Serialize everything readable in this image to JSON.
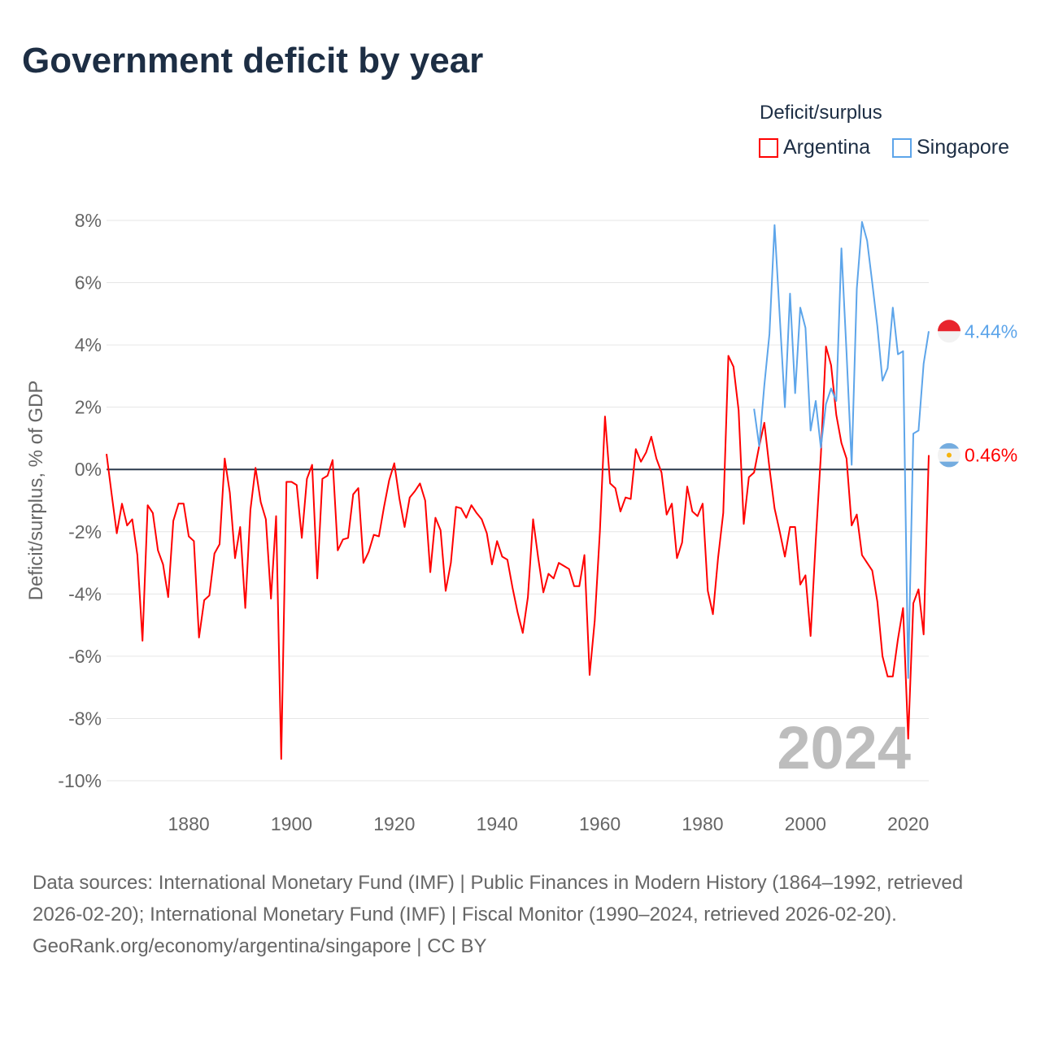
{
  "title": "Government deficit by year",
  "legend": {
    "title": "Deficit/surplus",
    "items": [
      {
        "label": "Argentina",
        "color": "#ff0000"
      },
      {
        "label": "Singapore",
        "color": "#5da5ea"
      }
    ]
  },
  "end_labels": {
    "singapore": "4.44%",
    "argentina": "0.46%"
  },
  "year_watermark": "2024",
  "footer": {
    "sources": "Data sources: International Monetary Fund (IMF) | Public Finances in Modern History (1864–1992, retrieved 2026-02-20); International Monetary Fund (IMF) | Fiscal Monitor (1990–2024, retrieved 2026-02-20).",
    "credit": "GeoRank.org/economy/argentina/singapore | CC BY"
  },
  "chart_data": {
    "type": "line",
    "title": "Government deficit by year",
    "xlabel": "",
    "ylabel": "Deficit/surplus, % of GDP",
    "xlim": [
      1864,
      2024
    ],
    "ylim": [
      -10,
      8
    ],
    "xticks": [
      1880,
      1900,
      1920,
      1940,
      1960,
      1980,
      2000,
      2020
    ],
    "yticks": [
      {
        "v": 8,
        "label": "8%"
      },
      {
        "v": 6,
        "label": "6%"
      },
      {
        "v": 4,
        "label": "4%"
      },
      {
        "v": 2,
        "label": "2%"
      },
      {
        "v": 0,
        "label": "0%"
      },
      {
        "v": -2,
        "label": "-2%"
      },
      {
        "v": -4,
        "label": "-4%"
      },
      {
        "v": -6,
        "label": "-6%"
      },
      {
        "v": -8,
        "label": "-8%"
      },
      {
        "v": -10,
        "label": "-10%"
      }
    ],
    "legend_position": "top-right",
    "grid": true,
    "series": [
      {
        "name": "Argentina",
        "color": "#ff0000",
        "start_year": 1864,
        "values": [
          0.5,
          -0.8,
          -2.05,
          -1.1,
          -1.8,
          -1.6,
          -2.75,
          -5.5,
          -1.15,
          -1.4,
          -2.6,
          -3.05,
          -4.1,
          -1.65,
          -1.1,
          -1.1,
          -2.15,
          -2.3,
          -5.4,
          -4.2,
          -4.05,
          -2.7,
          -2.4,
          0.35,
          -0.75,
          -2.85,
          -1.85,
          -4.45,
          -1.3,
          0.05,
          -1.05,
          -1.6,
          -4.15,
          -1.5,
          -9.3,
          -0.4,
          -0.4,
          -0.5,
          -2.2,
          -0.3,
          0.15,
          -3.5,
          -0.3,
          -0.2,
          0.3,
          -2.6,
          -2.25,
          -2.2,
          -0.8,
          -0.6,
          -3.0,
          -2.65,
          -2.1,
          -2.15,
          -1.2,
          -0.35,
          0.2,
          -0.95,
          -1.85,
          -0.9,
          -0.7,
          -0.45,
          -1.0,
          -3.3,
          -1.55,
          -1.95,
          -3.9,
          -3.0,
          -1.2,
          -1.25,
          -1.55,
          -1.15,
          -1.4,
          -1.6,
          -2.05,
          -3.05,
          -2.3,
          -2.8,
          -2.9,
          -3.8,
          -4.6,
          -5.25,
          -4.1,
          -1.6,
          -2.85,
          -3.95,
          -3.35,
          -3.5,
          -3.0,
          -3.1,
          -3.2,
          -3.75,
          -3.75,
          -2.75,
          -6.6,
          -4.85,
          -2.0,
          1.7,
          -0.45,
          -0.6,
          -1.35,
          -0.9,
          -0.95,
          0.65,
          0.25,
          0.55,
          1.05,
          0.35,
          -0.1,
          -1.45,
          -1.1,
          -2.85,
          -2.35,
          -0.55,
          -1.35,
          -1.5,
          -1.1,
          -3.9,
          -4.65,
          -2.85,
          -1.4,
          3.65,
          3.3,
          1.9,
          -1.75,
          -0.25,
          -0.1,
          0.75,
          1.5,
          0.05,
          -1.25,
          -2.0,
          -2.8,
          -1.85,
          -1.85,
          -3.7,
          -3.4,
          -5.35,
          -2.3,
          0.45,
          3.95,
          3.35,
          1.75,
          0.85,
          0.35,
          -1.8,
          -1.45,
          -2.75,
          -3.0,
          -3.25,
          -4.25,
          -6.0,
          -6.65,
          -6.65,
          -5.45,
          -4.45,
          -8.65,
          -4.3,
          -3.85,
          -5.3,
          0.46
        ]
      },
      {
        "name": "Singapore",
        "color": "#5da5ea",
        "start_year": 1990,
        "values": [
          1.95,
          0.75,
          2.7,
          4.35,
          7.85,
          4.9,
          2.0,
          5.65,
          2.45,
          5.2,
          4.55,
          1.25,
          2.2,
          0.7,
          2.1,
          2.6,
          2.2,
          7.1,
          3.75,
          0.15,
          5.8,
          7.95,
          7.35,
          6.0,
          4.6,
          2.85,
          3.25,
          5.2,
          3.7,
          3.8,
          -6.7,
          1.15,
          1.25,
          3.4,
          4.44
        ]
      }
    ]
  }
}
